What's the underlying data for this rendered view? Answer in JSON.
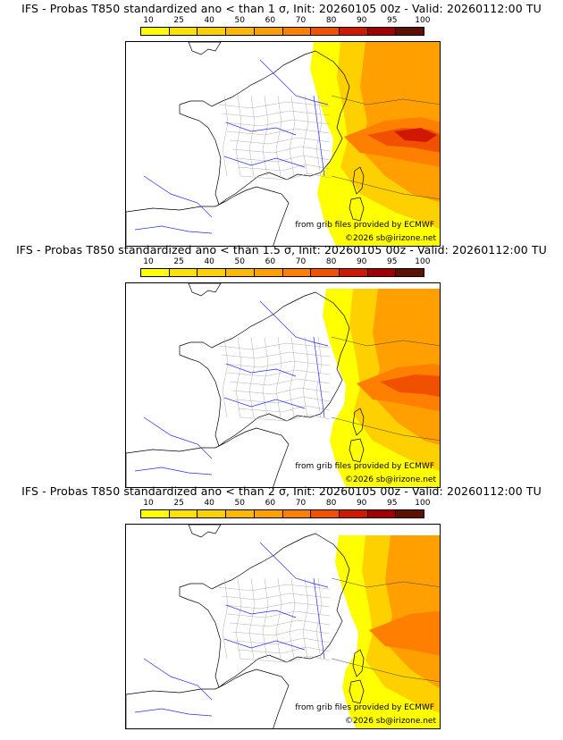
{
  "panels": [
    {
      "title": "IFS - Probas T850  standardized ano < than 1 σ, Init: 20260105 00z - Valid: 20260112:00 TU",
      "intensity": 1.0
    },
    {
      "title": "IFS - Probas T850  standardized ano < than 1.5 σ, Init: 20260105 00z - Valid: 20260112:00 TU",
      "intensity": 0.8
    },
    {
      "title": "IFS - Probas T850  standardized ano < than 2 σ, Init: 20260105 00z - Valid: 20260112:00 TU",
      "intensity": 0.6
    }
  ],
  "colorbar": {
    "ticks": [
      "10",
      "25",
      "40",
      "50",
      "60",
      "70",
      "80",
      "90",
      "95",
      "100"
    ],
    "colors": [
      "#ffff00",
      "#fee100",
      "#ffd000",
      "#ffb800",
      "#ffa000",
      "#ff8000",
      "#f05000",
      "#d01800",
      "#a00000",
      "#601000"
    ]
  },
  "credits": {
    "source": "from grib files provided by ECMWF",
    "copyright": "©2026 sb@irizone.net"
  }
}
